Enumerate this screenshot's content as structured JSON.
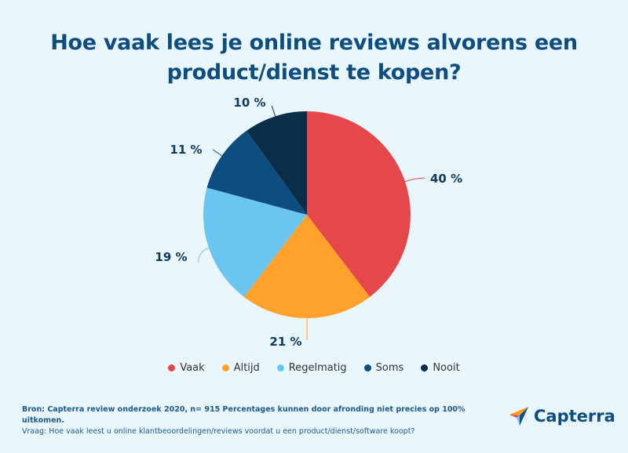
{
  "title": "Hoe vaak lees je online reviews alvorens een product/dienst te kopen?",
  "chart_data": {
    "type": "pie",
    "title": "Hoe vaak lees je online reviews alvorens een product/dienst te kopen?",
    "slices": [
      {
        "name": "Vaak",
        "value": 40,
        "label": "40 %",
        "color": "#e5484b"
      },
      {
        "name": "Altijd",
        "value": 21,
        "label": "21 %",
        "color": "#ffa12a"
      },
      {
        "name": "Regelmatig",
        "value": 19,
        "label": "19 %",
        "color": "#6ac6f0"
      },
      {
        "name": "Soms",
        "value": 11,
        "label": "11 %",
        "color": "#0e4d7f"
      },
      {
        "name": "Nooit",
        "value": 10,
        "label": "10 %",
        "color": "#0a2d4a"
      }
    ],
    "legend_position": "bottom"
  },
  "footer": {
    "source": "Bron: Capterra review onderzoek 2020, n= 915 Percentages kunnen door afronding niet precies op 100% uitkomen.",
    "question": "Vraag: Hoe vaak leest u online klantbeoordelingen/reviews voordat u een product/dienst/software koopt?"
  },
  "logo": {
    "text": "Capterra"
  }
}
